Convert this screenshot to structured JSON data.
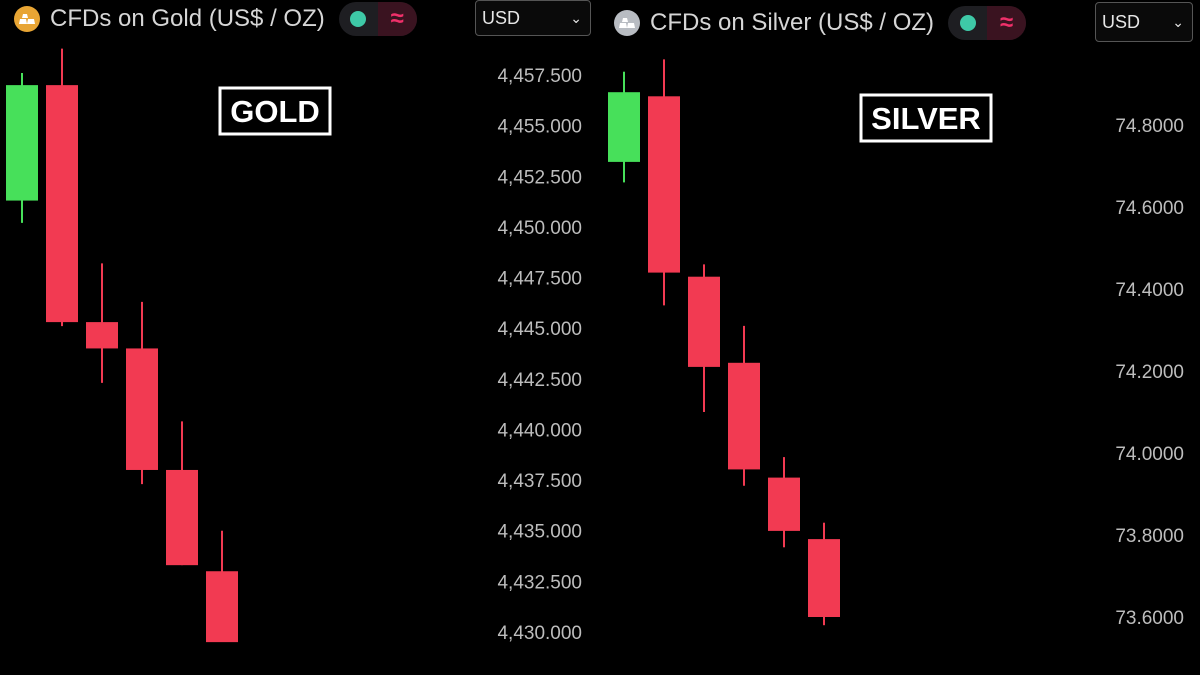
{
  "colors": {
    "background": "#000000",
    "up": "#47e05a",
    "down": "#f23a52",
    "axis_text": "#bdbdbd",
    "title_text": "#d6d6d6",
    "status_dot": "#3ec9a7",
    "pill_accent": "#f0306a",
    "gold_icon": "#e8a534",
    "silver_icon": "#b8bcc2"
  },
  "status_icon_glyph": "≈",
  "panels": [
    {
      "id": "gold",
      "title": "CFDs on Gold (US$ / OZ)",
      "icon": "gold-bars-icon",
      "currency": "USD",
      "overlay_label": "GOLD",
      "chart_data": {
        "type": "candlestick",
        "title": "CFDs on Gold (US$ / OZ)",
        "ylim": [
          4429.5,
          4459.0
        ],
        "y_ticks": [
          4457.5,
          4455.0,
          4452.5,
          4450.0,
          4447.5,
          4445.0,
          4442.5,
          4440.0,
          4437.5,
          4435.0,
          4432.5,
          4430.0
        ],
        "y_tick_labels": [
          "4,457.500",
          "4,455.000",
          "4,452.500",
          "4,450.000",
          "4,447.500",
          "4,445.000",
          "4,442.500",
          "4,440.000",
          "4,437.500",
          "4,435.000",
          "4,432.500",
          "4,430.000"
        ],
        "candles": [
          {
            "open": 4451.3,
            "high": 4457.6,
            "low": 4450.2,
            "close": 4457.0
          },
          {
            "open": 4457.0,
            "high": 4458.8,
            "low": 4445.1,
            "close": 4445.3
          },
          {
            "open": 4445.3,
            "high": 4448.2,
            "low": 4442.3,
            "close": 4444.0
          },
          {
            "open": 4444.0,
            "high": 4446.3,
            "low": 4437.3,
            "close": 4438.0
          },
          {
            "open": 4438.0,
            "high": 4440.4,
            "low": 4433.3,
            "close": 4433.3
          },
          {
            "open": 4433.0,
            "high": 4435.0,
            "low": 4429.7,
            "close": 4429.5
          }
        ]
      }
    },
    {
      "id": "silver",
      "title": "CFDs on Silver (US$ / OZ)",
      "icon": "silver-bars-icon",
      "currency": "USD",
      "overlay_label": "SILVER",
      "chart_data": {
        "type": "candlestick",
        "title": "CFDs on Silver (US$ / OZ)",
        "ylim": [
          73.54,
          75.0
        ],
        "y_ticks": [
          74.8,
          74.6,
          74.4,
          74.2,
          74.0,
          73.8,
          73.6
        ],
        "y_tick_labels": [
          "74.8000",
          "74.6000",
          "74.4000",
          "74.2000",
          "74.0000",
          "73.8000",
          "73.6000"
        ],
        "candles": [
          {
            "open": 74.71,
            "high": 74.93,
            "low": 74.66,
            "close": 74.88
          },
          {
            "open": 74.87,
            "high": 74.96,
            "low": 74.36,
            "close": 74.44
          },
          {
            "open": 74.43,
            "high": 74.46,
            "low": 74.1,
            "close": 74.21
          },
          {
            "open": 74.22,
            "high": 74.31,
            "low": 73.92,
            "close": 73.96
          },
          {
            "open": 73.94,
            "high": 73.99,
            "low": 73.77,
            "close": 73.81
          },
          {
            "open": 73.79,
            "high": 73.83,
            "low": 73.58,
            "close": 73.6
          }
        ]
      }
    }
  ]
}
